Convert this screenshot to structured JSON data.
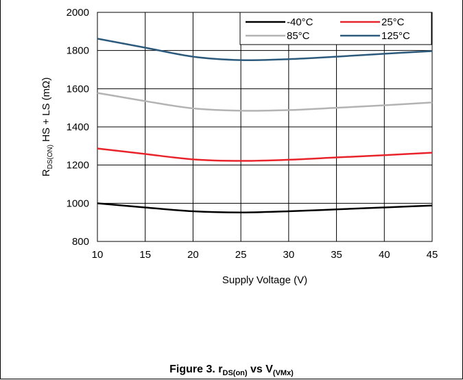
{
  "chart_data": {
    "type": "line",
    "title": "",
    "xlabel": "Supply Voltage (V)",
    "ylabel": {
      "main": "R",
      "sub": "DS(ON)",
      "rest": " HS + LS (mΩ)"
    },
    "xlim": [
      10,
      45
    ],
    "ylim": [
      800,
      2000
    ],
    "x_ticks": [
      10,
      15,
      20,
      25,
      30,
      35,
      40,
      45
    ],
    "y_ticks": [
      800,
      1000,
      1200,
      1400,
      1600,
      1800,
      2000
    ],
    "grid": true,
    "legend_position": "top-right",
    "series": [
      {
        "name": "-40°C",
        "color": "#000000",
        "x": [
          10,
          15,
          20,
          25,
          30,
          35,
          40,
          45
        ],
        "values": [
          1000,
          978,
          958,
          952,
          958,
          968,
          978,
          988
        ]
      },
      {
        "name": "25°C",
        "color": "#e8232a",
        "x": [
          10,
          15,
          20,
          25,
          30,
          35,
          40,
          45
        ],
        "values": [
          1287,
          1258,
          1230,
          1222,
          1228,
          1240,
          1252,
          1265
        ]
      },
      {
        "name": "85°C",
        "color": "#b3b3b3",
        "x": [
          10,
          15,
          20,
          25,
          30,
          35,
          40,
          45
        ],
        "values": [
          1578,
          1535,
          1497,
          1485,
          1488,
          1500,
          1513,
          1528
        ]
      },
      {
        "name": "125°C",
        "color": "#2c5a7c",
        "x": [
          10,
          15,
          20,
          25,
          30,
          35,
          40,
          45
        ],
        "values": [
          1862,
          1815,
          1768,
          1750,
          1755,
          1768,
          1783,
          1797
        ]
      }
    ]
  },
  "caption": {
    "prefix": "Figure 3. r",
    "sub1": "DS(on)",
    "mid": " vs V",
    "sub2": "(VMx)"
  }
}
